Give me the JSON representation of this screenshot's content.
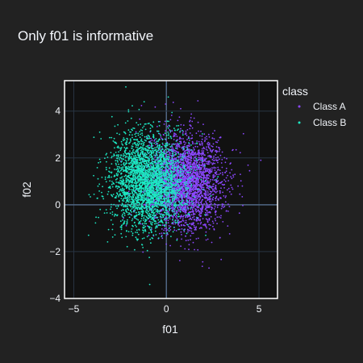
{
  "chart_data": {
    "type": "scatter",
    "title": "Only f01 is informative",
    "xlabel": "f01",
    "ylabel": "f02",
    "xlim": [
      -5.5,
      6
    ],
    "ylim": [
      -4,
      5.3
    ],
    "xticks": [
      -5,
      0,
      5
    ],
    "yticks": [
      -4,
      -2,
      0,
      2,
      4
    ],
    "grid": true,
    "legend": {
      "title": "class",
      "placement": "right"
    },
    "colors": {
      "page_bg": "#222222",
      "plot_bg": "#111111",
      "grid": "#283442",
      "frame": "#ffffff"
    },
    "series": [
      {
        "name": "Class A",
        "color": "#8c48ff",
        "distribution": {
          "x_mean": 1.0,
          "x_sd": 1.0,
          "y_mean": 1.0,
          "y_sd": 1.0,
          "n": 3000
        },
        "points_sample": [
          [
            1.2,
            1.1
          ],
          [
            0.5,
            2.3
          ],
          [
            2.1,
            0.4
          ],
          [
            1.8,
            2.6
          ],
          [
            3.2,
            1.0
          ],
          [
            0.9,
            -0.6
          ],
          [
            2.6,
            1.9
          ],
          [
            4.1,
            0.8
          ],
          [
            1.5,
            3.7
          ],
          [
            2.9,
            -1.4
          ],
          [
            5.1,
            1.9
          ],
          [
            2.3,
            -2.7
          ]
        ]
      },
      {
        "name": "Class B",
        "color": "#1de9c4",
        "distribution": {
          "x_mean": -1.0,
          "x_sd": 1.0,
          "y_mean": 1.0,
          "y_sd": 1.0,
          "n": 3000
        },
        "points_sample": [
          [
            -1.1,
            0.9
          ],
          [
            -0.6,
            1.7
          ],
          [
            -2.0,
            0.3
          ],
          [
            -1.4,
            2.2
          ],
          [
            -3.1,
            1.2
          ],
          [
            -0.3,
            -0.5
          ],
          [
            -2.4,
            2.6
          ],
          [
            -1.2,
            4.4
          ],
          [
            -4.2,
            -1.3
          ],
          [
            -0.9,
            -3.4
          ],
          [
            -3.6,
            3.1
          ],
          [
            0.1,
            4.6
          ]
        ]
      }
    ]
  }
}
